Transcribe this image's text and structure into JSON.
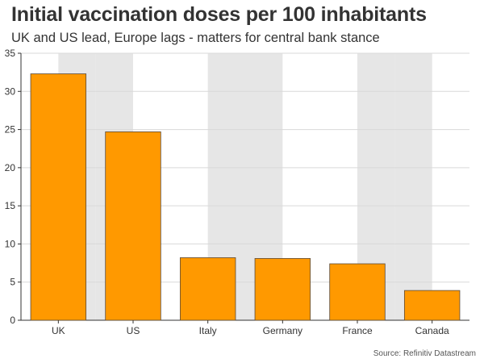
{
  "header": {
    "title": "Initial vaccination doses per 100 inhabitants",
    "subtitle": "UK and US lead, Europe lags - matters for central bank stance"
  },
  "footer": {
    "source": "Source: Refinitiv Datastream"
  },
  "colors": {
    "bar_fill": "#ff9900",
    "bar_stroke": "#5a4a3a",
    "band_fill": "#e6e6e6",
    "grid": "#d9d9d9",
    "axis": "#333333"
  },
  "chart_data": {
    "type": "bar",
    "title": "Initial vaccination doses per 100 inhabitants",
    "subtitle": "UK and US lead, Europe lags - matters for central bank stance",
    "categories": [
      "UK",
      "US",
      "Italy",
      "Germany",
      "France",
      "Canada"
    ],
    "values": [
      32.3,
      24.7,
      8.2,
      8.1,
      7.4,
      3.9
    ],
    "xlabel": "",
    "ylabel": "",
    "ylim": [
      0,
      35
    ],
    "yticks": [
      0,
      5,
      10,
      15,
      20,
      25,
      30,
      35
    ],
    "grid": true,
    "alternating_bands": true
  }
}
